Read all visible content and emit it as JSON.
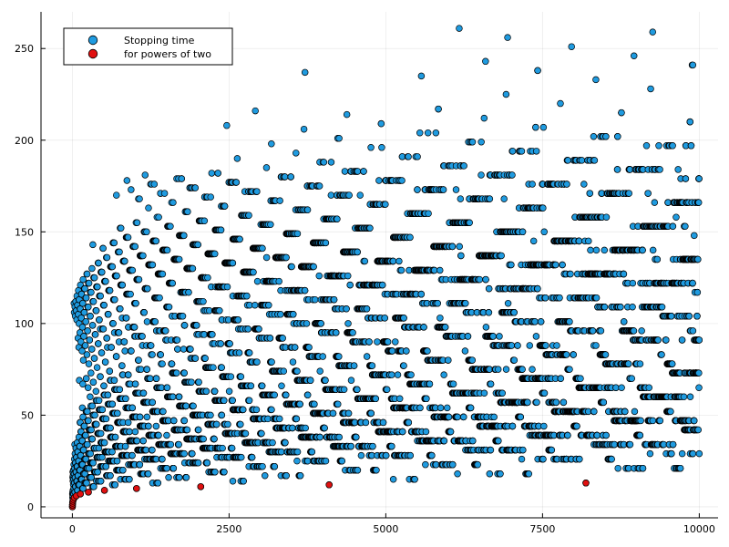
{
  "chart_data": {
    "type": "scatter",
    "title": "",
    "xlabel": "",
    "ylabel": "",
    "xlim": [
      -500,
      10300
    ],
    "ylim": [
      -6,
      270
    ],
    "x_ticks": [
      0,
      2500,
      5000,
      7500,
      10000
    ],
    "x_tick_labels": [
      "0",
      "2500",
      "5000",
      "7500",
      "10000"
    ],
    "y_ticks": [
      0,
      50,
      100,
      150,
      200,
      250
    ],
    "y_tick_labels": [
      "0",
      "50",
      "100",
      "150",
      "200",
      "250"
    ],
    "grid": true,
    "legend_position": "top-left",
    "series": [
      {
        "name": "Stopping time",
        "color": "#1f9be0",
        "description": "Collatz total stopping time of n for n = 1..10000",
        "n_range": [
          1,
          10000
        ]
      },
      {
        "name": "for powers of two",
        "color": "#e01010",
        "x": [
          1,
          2,
          4,
          8,
          16,
          32,
          64,
          128,
          256,
          512,
          1024,
          2048,
          4096,
          8192
        ],
        "y": [
          0,
          1,
          2,
          3,
          4,
          5,
          6,
          7,
          8,
          9,
          10,
          11,
          12,
          13
        ]
      }
    ]
  }
}
